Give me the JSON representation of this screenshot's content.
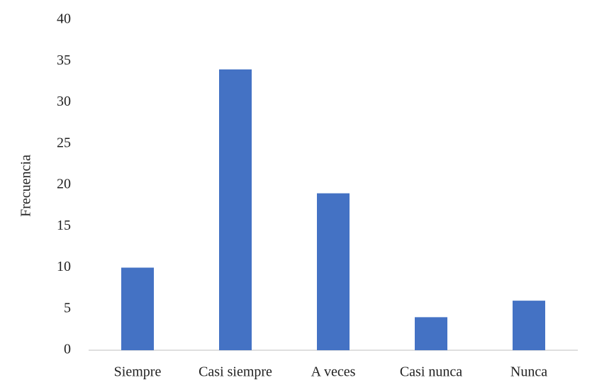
{
  "chart_data": {
    "type": "bar",
    "y_label": "Frecuencia",
    "categories": [
      "Siempre",
      "Casi siempre",
      "A veces",
      "Casi nunca",
      "Nunca"
    ],
    "values": [
      10,
      34,
      19,
      4,
      6
    ],
    "color": "#4472c4",
    "ylim": [
      0,
      40
    ],
    "yticks": [
      0,
      5,
      10,
      15,
      20,
      25,
      30,
      35,
      40
    ],
    "grid": false
  }
}
